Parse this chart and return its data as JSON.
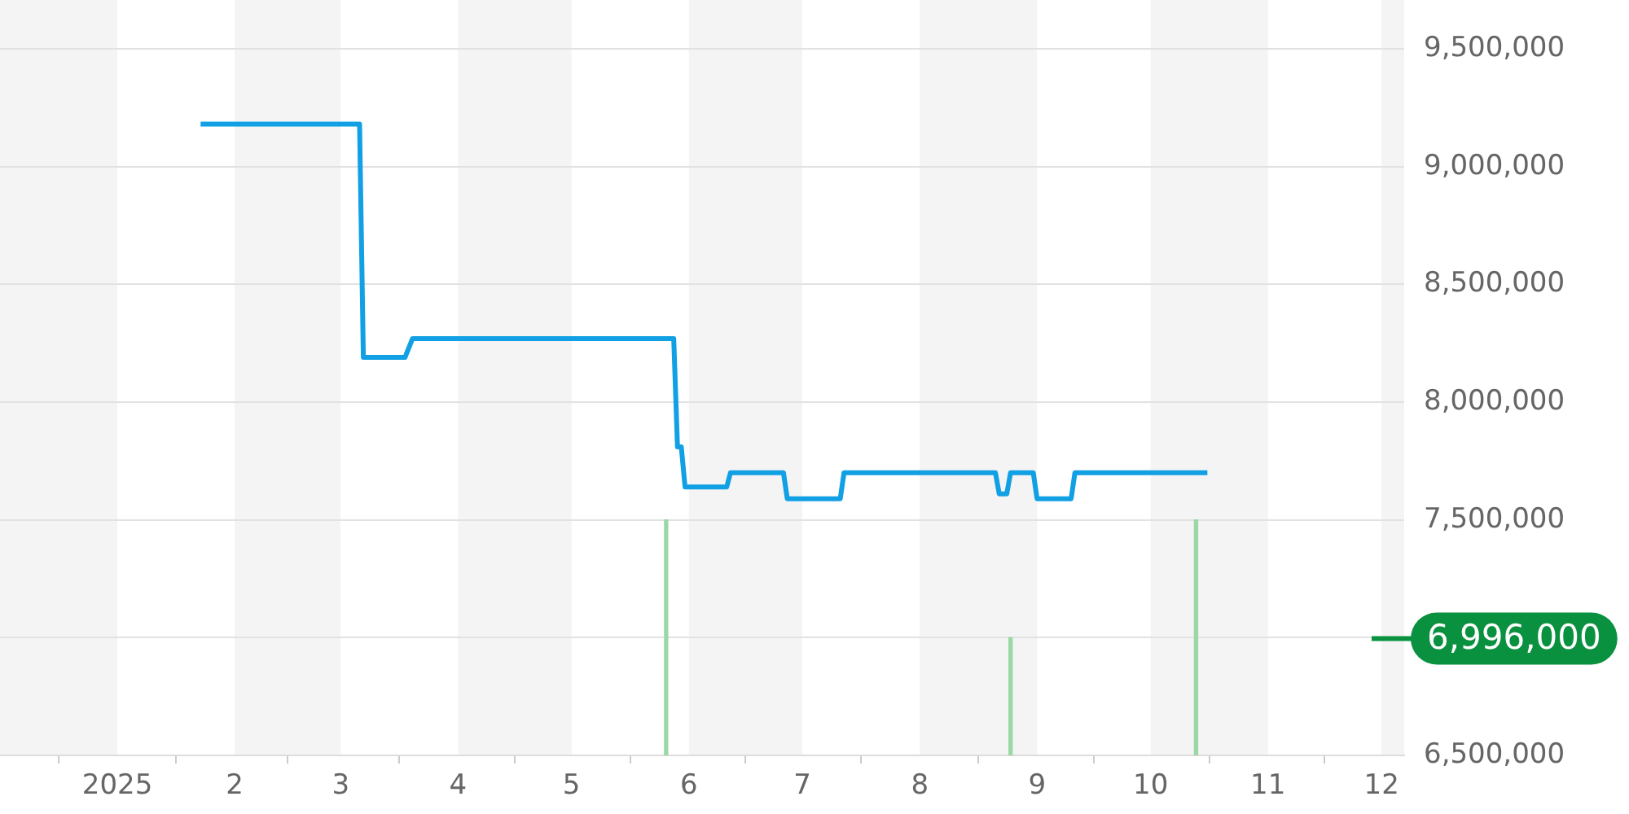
{
  "chart_data": {
    "type": "line",
    "xlim": [
      "2024-12-01",
      "2025-12-07"
    ],
    "xticks": [
      {
        "value": "2025-01-01",
        "label": "2025"
      },
      {
        "value": "2025-02-01",
        "label": "2"
      },
      {
        "value": "2025-03-01",
        "label": "3"
      },
      {
        "value": "2025-04-01",
        "label": "4"
      },
      {
        "value": "2025-05-01",
        "label": "5"
      },
      {
        "value": "2025-06-01",
        "label": "6"
      },
      {
        "value": "2025-07-01",
        "label": "7"
      },
      {
        "value": "2025-08-01",
        "label": "8"
      },
      {
        "value": "2025-09-01",
        "label": "9"
      },
      {
        "value": "2025-10-01",
        "label": "10"
      },
      {
        "value": "2025-11-01",
        "label": "11"
      },
      {
        "value": "2025-12-01",
        "label": "12"
      }
    ],
    "ylim": [
      6500000,
      9500000
    ],
    "yticks": [
      {
        "value": 6500000,
        "label": "6,500,000"
      },
      {
        "value": 7000000,
        "label": null
      },
      {
        "value": 7500000,
        "label": "7,500,000"
      },
      {
        "value": 8000000,
        "label": "8,000,000"
      },
      {
        "value": 8500000,
        "label": "8,500,000"
      },
      {
        "value": 9000000,
        "label": "9,000,000"
      },
      {
        "value": 9500000,
        "label": "9,500,000"
      }
    ],
    "grid": "y",
    "legend": false,
    "marker": "none",
    "line_style": "solid",
    "series": [
      {
        "color": "#10a0e3",
        "x": [
          "2025-01-23",
          "2025-03-06",
          "2025-03-07",
          "2025-03-18",
          "2025-03-20",
          "2025-05-28",
          "2025-05-29",
          "2025-05-30",
          "2025-05-31",
          "2025-06-11",
          "2025-06-12",
          "2025-06-26",
          "2025-06-27",
          "2025-07-11",
          "2025-07-12",
          "2025-08-21",
          "2025-08-22",
          "2025-08-24",
          "2025-08-25",
          "2025-08-31",
          "2025-09-01",
          "2025-09-10",
          "2025-09-11",
          "2025-10-16"
        ],
        "values": [
          9180000,
          9180000,
          8190000,
          8190000,
          8270000,
          8270000,
          7810000,
          7810000,
          7640000,
          7640000,
          7700000,
          7700000,
          7590000,
          7590000,
          7700000,
          7700000,
          7610000,
          7610000,
          7700000,
          7700000,
          7590000,
          7590000,
          7700000,
          7700000
        ]
      },
      {
        "type": "bar",
        "color": "#9ad8a5",
        "x": [
          "2025-05-26",
          "2025-08-25",
          "2025-10-13"
        ],
        "values": [
          7500000,
          7000000,
          7500000
        ]
      }
    ],
    "bands": [
      {
        "axis": "x",
        "from": "2024-12-01",
        "to": "2025-01-01",
        "color": "#f4f4f4"
      },
      {
        "axis": "x",
        "from": "2025-02-01",
        "to": "2025-03-01",
        "color": "#f4f4f4"
      },
      {
        "axis": "x",
        "from": "2025-04-01",
        "to": "2025-05-01",
        "color": "#f4f4f4"
      },
      {
        "axis": "x",
        "from": "2025-06-01",
        "to": "2025-07-01",
        "color": "#f4f4f4"
      },
      {
        "axis": "x",
        "from": "2025-08-01",
        "to": "2025-09-01",
        "color": "#f4f4f4"
      },
      {
        "axis": "x",
        "from": "2025-10-01",
        "to": "2025-11-01",
        "color": "#f4f4f4"
      },
      {
        "axis": "x",
        "from": "2025-12-01",
        "to": "2025-12-07",
        "color": "#f4f4f4"
      }
    ],
    "ref_lines": [
      {
        "axis": "y",
        "value": 6996000,
        "label": "6,996,000",
        "color": "#0a9140"
      }
    ]
  }
}
